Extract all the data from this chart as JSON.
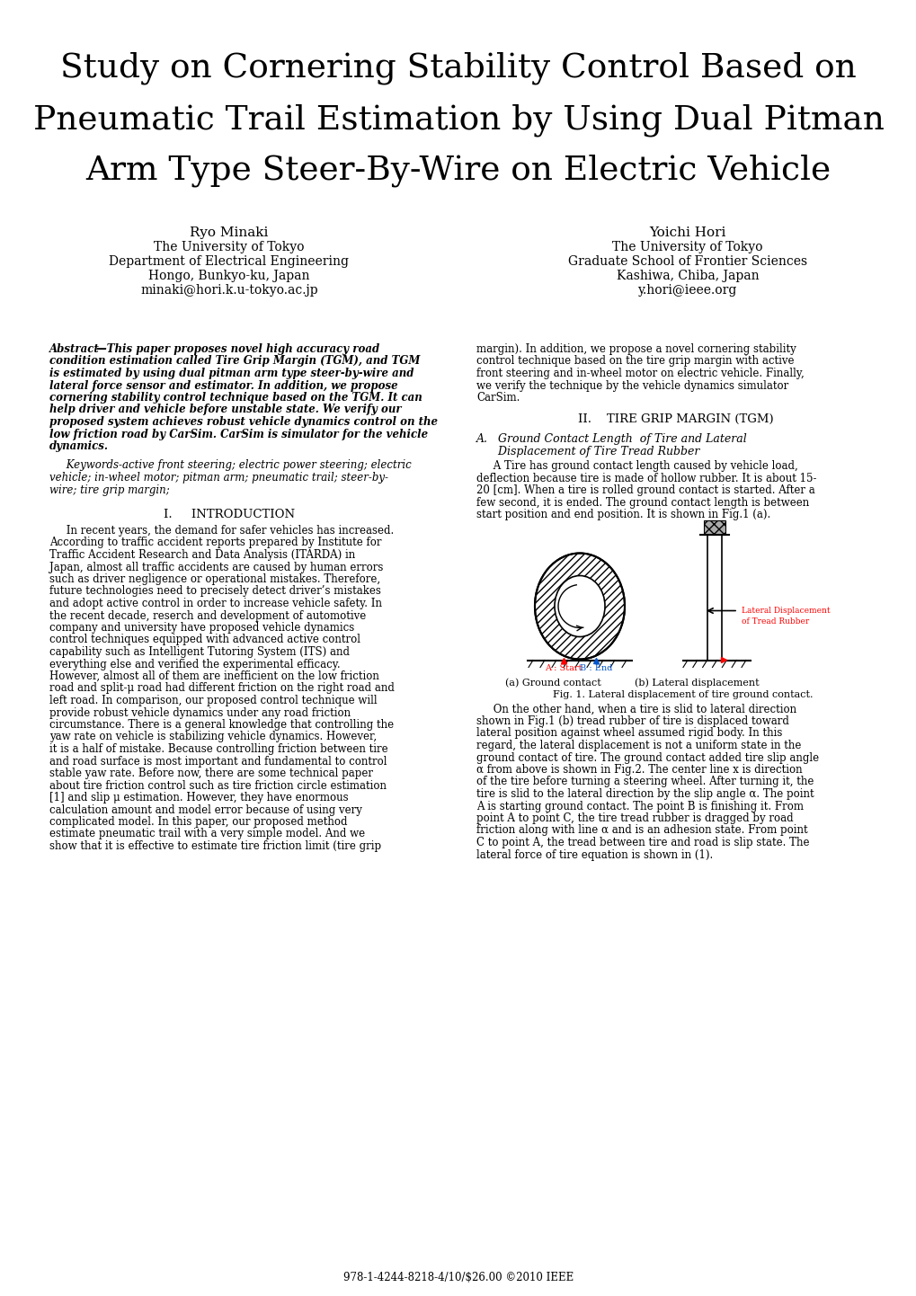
{
  "title_line1": "Study on Cornering Stability Control Based on",
  "title_line2": "Pneumatic Trail Estimation by Using Dual Pitman",
  "title_line3": "Arm Type Steer-By-Wire on Electric Vehicle",
  "author1_name": "Ryo Minaki",
  "author1_line1": "The University of Tokyo",
  "author1_line2": "Department of Electrical Engineering",
  "author1_line3": "Hongo, Bunkyo-ku, Japan",
  "author1_line4": "minaki@hori.k.u-tokyo.ac.jp",
  "author2_name": "Yoichi Hori",
  "author2_line1": "The University of Tokyo",
  "author2_line2": "Graduate School of Frontier Sciences",
  "author2_line3": "Kashiwa, Chiba, Japan",
  "author2_line4": "y.hori@ieee.org",
  "abstract_bold_line0": "—This paper proposes novel high accuracy road",
  "abstract_bold_lines": [
    "condition estimation called Tire Grip Margin (TGM), and TGM",
    "is estimated by using dual pitman arm type steer-by-wire and",
    "lateral force sensor and estimator. In addition, we propose",
    "cornering stability control technique based on the TGM. It can",
    "help driver and vehicle before unstable state. We verify our",
    "proposed system achieves robust vehicle dynamics control on the",
    "low friction road by CarSim. CarSim is simulator for the vehicle",
    "dynamics."
  ],
  "abstract_right_lines": [
    "margin). In addition, we propose a novel cornering stability",
    "control technique based on the tire grip margin with active",
    "front steering and in-wheel motor on electric vehicle. Finally,",
    "we verify the technique by the vehicle dynamics simulator",
    "CarSim."
  ],
  "keywords_lines": [
    "     Keywords-active front steering; electric power steering; electric",
    "vehicle; in-wheel motor; pitman arm; pneumatic trail; steer-by-",
    "wire; tire grip margin;"
  ],
  "sec1_header": "I.     INTRODUCTION",
  "sec1_lines": [
    "     In recent years, the demand for safer vehicles has increased.",
    "According to traffic accident reports prepared by Institute for",
    "Traffic Accident Research and Data Analysis (ITARDA) in",
    "Japan, almost all traffic accidents are caused by human errors",
    "such as driver negligence or operational mistakes. Therefore,",
    "future technologies need to precisely detect driver’s mistakes",
    "and adopt active control in order to increase vehicle safety. In",
    "the recent decade, reserch and development of automotive",
    "company and university have proposed vehicle dynamics",
    "control techniques equipped with advanced active control",
    "capability such as Intelligent Tutoring System (ITS) and",
    "everything else and verified the experimental efficacy.",
    "However, almost all of them are inefficient on the low friction",
    "road and split-μ road had different friction on the right road and",
    "left road. In comparison, our proposed control technique will",
    "provide robust vehicle dynamics under any road friction",
    "circumstance. There is a general knowledge that controlling the",
    "yaw rate on vehicle is stabilizing vehicle dynamics. However,",
    "it is a half of mistake. Because controlling friction between tire",
    "and road surface is most important and fundamental to control",
    "stable yaw rate. Before now, there are some technical paper",
    "about tire friction control such as tire friction circle estimation",
    "[1] and slip μ estimation. However, they have enormous",
    "calculation amount and model error because of using very",
    "complicated model. In this paper, our proposed method",
    "estimate pneumatic trail with a very simple model. And we",
    "show that it is effective to estimate tire friction limit (tire grip"
  ],
  "sec2_header": "II.    TIRE GRIP MARGIN (TGM)",
  "sec2a_header_line1": "A.   Ground Contact Length  of Tire and Lateral",
  "sec2a_header_line2": "      Displacement of Tire Tread Rubber",
  "sec2a_lines": [
    "     A Tire has ground contact length caused by vehicle load,",
    "deflection because tire is made of hollow rubber. It is about 15-",
    "20 [cm]. When a tire is rolled ground contact is started. After a",
    "few second, it is ended. The ground contact length is between",
    "start position and end position. It is shown in Fig.1 (a)."
  ],
  "sec2b_lines": [
    "     On the other hand, when a tire is slid to lateral direction",
    "shown in Fig.1 (b) tread rubber of tire is displaced toward",
    "lateral position against wheel assumed rigid body. In this",
    "regard, the lateral displacement is not a uniform state in the",
    "ground contact of tire. The ground contact added tire slip angle",
    "α from above is shown in Fig.2. The center line x is direction",
    "of the tire before turning a steering wheel. After turning it, the",
    "tire is slid to the lateral direction by the slip angle α. The point",
    "A is starting ground contact. The point B is finishing it. From",
    "point A to point C, the tire tread rubber is dragged by road",
    "friction along with line α and is an adhesion state. From point",
    "C to point A, the tread between tire and road is slip state. The",
    "lateral force of tire equation is shown in (1)."
  ],
  "fig_caption_a": "(a) Ground contact",
  "fig_caption_b": "(b) Lateral displacement",
  "fig_caption": "Fig. 1. Lateral displacement of tire ground contact.",
  "footer": "978-1-4244-8218-4/10/$26.00 ©2010 IEEE",
  "bg": "#ffffff"
}
